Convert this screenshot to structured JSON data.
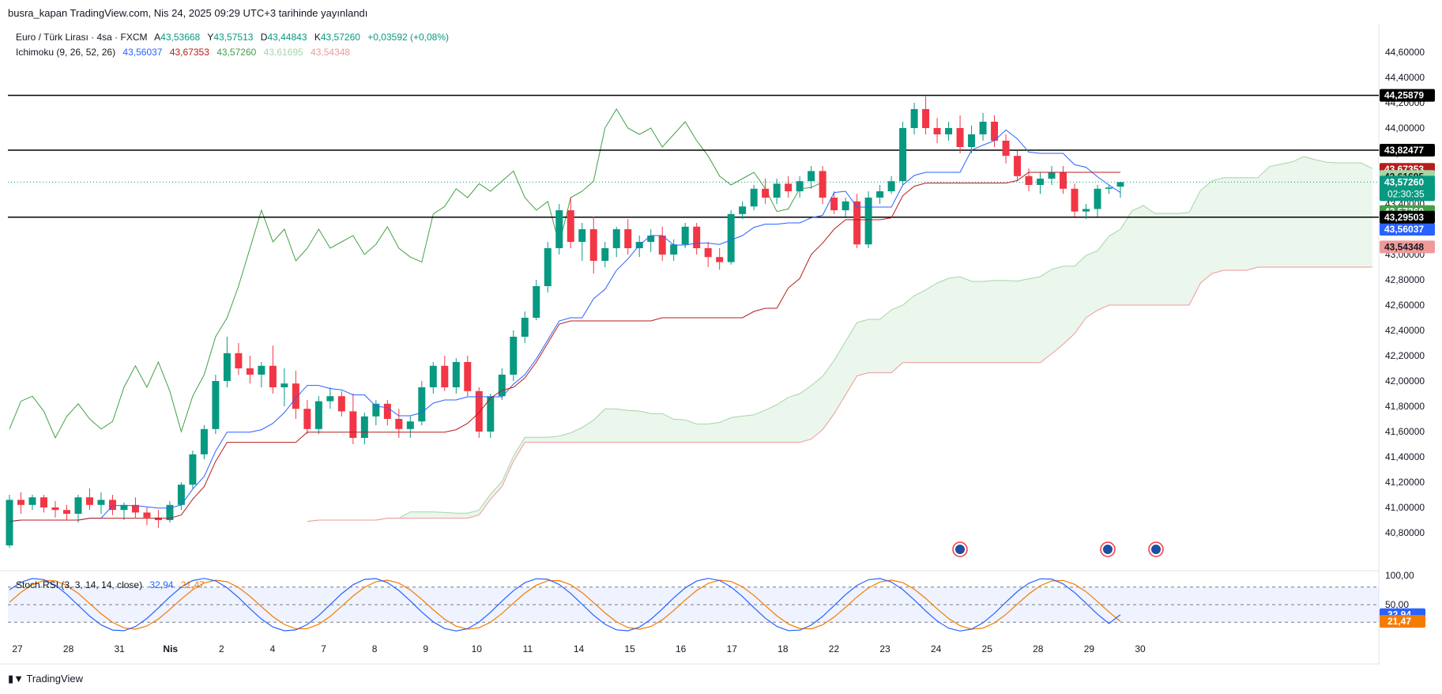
{
  "header": {
    "publish_note": "busra_kapan TradingView.com, Nis 24, 2025 09:29 UTC+3 tarihinde yayınlandı"
  },
  "legend": {
    "symbol": "Euro / Türk Lirası · 4sa · FXCM",
    "open_label": "A",
    "open": "43,53668",
    "high_label": "Y",
    "high": "43,57513",
    "low_label": "D",
    "low": "43,44843",
    "close_label": "K",
    "close": "43,57260",
    "change": "+0,03592 (+0,08%)",
    "ichimoku_label": "Ichimoku (9, 26, 52, 26)",
    "ichimoku_values": [
      "43,56037",
      "43,67353",
      "43,57260",
      "43,61695",
      "43,54348"
    ],
    "stoch_label": "Stoch RSI (3, 3, 14, 14, close)",
    "stoch_values": [
      "32,94",
      "21,47"
    ]
  },
  "colors": {
    "up": "#089981",
    "down": "#F23645",
    "tenkan": "#2962FF",
    "kijun": "#B71C1C",
    "chikou": "#43A047",
    "span_a": "#A5D6A7",
    "span_b": "#EF9A9A",
    "kumo_bull": "#E8F5E9",
    "kumo_bear": "#FDE3E1",
    "stoch_k": "#2962FF",
    "stoch_d": "#F57C00",
    "grid": "#E0E3EB",
    "text": "#131722"
  },
  "price_axis": {
    "ticks": [
      "44,60000",
      "44,40000",
      "44,20000",
      "44,00000",
      "43,80000",
      "43,60000",
      "43,40000",
      "43,20000",
      "43,00000",
      "42,80000",
      "42,60000",
      "42,40000",
      "42,20000",
      "42,00000",
      "41,80000",
      "41,60000",
      "41,40000",
      "41,20000",
      "41,00000",
      "40,80000"
    ]
  },
  "price_tags": [
    {
      "text": "44,25879",
      "value": 44.25879,
      "bg": "#000000",
      "fg": "#ffffff"
    },
    {
      "text": "43,82477",
      "value": 43.82477,
      "bg": "#000000",
      "fg": "#ffffff"
    },
    {
      "text": "43,67353",
      "value": 43.67353,
      "bg": "#B71C1C",
      "fg": "#ffffff"
    },
    {
      "text": "43,61695",
      "value": 43.61695,
      "bg": "#A5D6A7",
      "fg": "#131722"
    },
    {
      "text": "43,57260",
      "value": 43.5726,
      "bg": "#089981",
      "fg": "#ffffff",
      "sub": "02:30:35"
    },
    {
      "text": "43,57260",
      "value": 43.34,
      "bg": "#43A047",
      "fg": "#ffffff"
    },
    {
      "text": "43,56037",
      "value": 43.2,
      "bg": "#2962FF",
      "fg": "#ffffff"
    },
    {
      "text": "43,54348",
      "value": 43.06,
      "bg": "#EF9A9A",
      "fg": "#131722"
    },
    {
      "text": "43,29503",
      "value": 43.29503,
      "bg": "#000000",
      "fg": "#ffffff"
    }
  ],
  "horizontal_levels": [
    44.25879,
    43.82477,
    43.29503
  ],
  "stoch_axis": {
    "ticks": [
      "100,00",
      "50,00"
    ],
    "k_tag": "32,94",
    "d_tag": "21,47"
  },
  "time_axis": {
    "labels": [
      "27",
      "28",
      "31",
      "Nis",
      "2",
      "4",
      "7",
      "8",
      "9",
      "10",
      "11",
      "14",
      "15",
      "16",
      "17",
      "18",
      "22",
      "23",
      "24",
      "25",
      "28",
      "29",
      "30"
    ]
  },
  "footer": {
    "logo": "TradingView"
  },
  "chart_data": {
    "type": "candlestick",
    "title": "Euro / Türk Lirası · 4sa · FXCM",
    "ylim": [
      40.7,
      44.7
    ],
    "x_categories": [
      "27",
      "28",
      "31",
      "Nis",
      "2",
      "4",
      "7",
      "8",
      "9",
      "10",
      "11",
      "14",
      "15",
      "16",
      "17",
      "18",
      "22",
      "23",
      "24",
      "25",
      "28",
      "29",
      "30"
    ],
    "candles_ohlc_approx": [
      [
        40.7,
        41.1,
        40.68,
        41.06
      ],
      [
        41.06,
        41.12,
        40.95,
        41.02
      ],
      [
        41.02,
        41.1,
        40.98,
        41.08
      ],
      [
        41.08,
        41.1,
        40.96,
        41.0
      ],
      [
        41.0,
        41.05,
        40.92,
        40.98
      ],
      [
        40.98,
        41.02,
        40.9,
        40.95
      ],
      [
        40.95,
        41.1,
        40.88,
        41.08
      ],
      [
        41.08,
        41.15,
        40.98,
        41.02
      ],
      [
        41.02,
        41.12,
        40.95,
        41.06
      ],
      [
        41.06,
        41.1,
        40.94,
        40.98
      ],
      [
        40.98,
        41.04,
        40.9,
        41.02
      ],
      [
        41.02,
        41.08,
        40.92,
        40.96
      ],
      [
        40.96,
        41.0,
        40.86,
        40.92
      ],
      [
        40.92,
        40.98,
        40.84,
        40.9
      ],
      [
        40.9,
        41.05,
        40.88,
        41.02
      ],
      [
        41.02,
        41.2,
        40.98,
        41.18
      ],
      [
        41.18,
        41.45,
        41.15,
        41.42
      ],
      [
        41.42,
        41.65,
        41.38,
        41.62
      ],
      [
        41.62,
        42.05,
        41.58,
        42.0
      ],
      [
        42.0,
        42.35,
        41.95,
        42.22
      ],
      [
        42.22,
        42.3,
        42.05,
        42.1
      ],
      [
        42.1,
        42.2,
        41.98,
        42.05
      ],
      [
        42.05,
        42.15,
        41.95,
        42.12
      ],
      [
        42.12,
        42.28,
        41.9,
        41.95
      ],
      [
        41.95,
        42.1,
        41.8,
        41.98
      ],
      [
        41.98,
        42.08,
        41.7,
        41.78
      ],
      [
        41.78,
        41.85,
        41.58,
        41.62
      ],
      [
        41.62,
        41.88,
        41.58,
        41.84
      ],
      [
        41.84,
        41.95,
        41.78,
        41.88
      ],
      [
        41.88,
        41.92,
        41.72,
        41.76
      ],
      [
        41.76,
        41.9,
        41.5,
        41.55
      ],
      [
        41.55,
        41.75,
        41.5,
        41.72
      ],
      [
        41.72,
        41.85,
        41.65,
        41.82
      ],
      [
        41.82,
        41.85,
        41.65,
        41.7
      ],
      [
        41.7,
        41.78,
        41.55,
        41.62
      ],
      [
        41.62,
        41.72,
        41.55,
        41.68
      ],
      [
        41.68,
        42.0,
        41.65,
        41.95
      ],
      [
        41.95,
        42.15,
        41.9,
        42.12
      ],
      [
        42.12,
        42.2,
        41.92,
        41.95
      ],
      [
        41.95,
        42.18,
        41.9,
        42.15
      ],
      [
        42.15,
        42.2,
        41.88,
        41.92
      ],
      [
        41.92,
        41.95,
        41.55,
        41.6
      ],
      [
        41.6,
        41.9,
        41.55,
        41.88
      ],
      [
        41.88,
        42.1,
        41.85,
        42.05
      ],
      [
        42.05,
        42.4,
        42.0,
        42.35
      ],
      [
        42.35,
        42.55,
        42.3,
        42.5
      ],
      [
        42.5,
        42.8,
        42.48,
        42.75
      ],
      [
        42.75,
        43.1,
        42.7,
        43.05
      ],
      [
        43.05,
        43.4,
        43.0,
        43.35
      ],
      [
        43.35,
        43.45,
        43.05,
        43.1
      ],
      [
        43.1,
        43.25,
        42.95,
        43.2
      ],
      [
        43.2,
        43.3,
        42.85,
        42.95
      ],
      [
        42.95,
        43.1,
        42.9,
        43.05
      ],
      [
        43.05,
        43.22,
        42.98,
        43.2
      ],
      [
        43.2,
        43.28,
        43.0,
        43.05
      ],
      [
        43.05,
        43.15,
        42.98,
        43.1
      ],
      [
        43.1,
        43.2,
        43.02,
        43.15
      ],
      [
        43.15,
        43.22,
        42.95,
        43.0
      ],
      [
        43.0,
        43.12,
        42.95,
        43.08
      ],
      [
        43.08,
        43.25,
        43.05,
        43.22
      ],
      [
        43.22,
        43.25,
        43.0,
        43.05
      ],
      [
        43.05,
        43.1,
        42.9,
        42.98
      ],
      [
        42.98,
        43.05,
        42.88,
        42.94
      ],
      [
        42.94,
        43.35,
        42.92,
        43.32
      ],
      [
        43.32,
        43.42,
        43.28,
        43.38
      ],
      [
        43.38,
        43.55,
        43.35,
        43.52
      ],
      [
        43.52,
        43.6,
        43.4,
        43.45
      ],
      [
        43.45,
        43.6,
        43.4,
        43.56
      ],
      [
        43.56,
        43.62,
        43.45,
        43.5
      ],
      [
        43.5,
        43.62,
        43.45,
        43.58
      ],
      [
        43.58,
        43.7,
        43.52,
        43.66
      ],
      [
        43.66,
        43.7,
        43.4,
        43.45
      ],
      [
        43.45,
        43.5,
        43.32,
        43.35
      ],
      [
        43.35,
        43.45,
        43.3,
        43.42
      ],
      [
        43.42,
        43.48,
        43.05,
        43.08
      ],
      [
        43.08,
        43.5,
        43.05,
        43.45
      ],
      [
        43.45,
        43.55,
        43.4,
        43.5
      ],
      [
        43.5,
        43.62,
        43.48,
        43.58
      ],
      [
        43.58,
        44.05,
        43.55,
        44.0
      ],
      [
        44.0,
        44.2,
        43.95,
        44.15
      ],
      [
        44.15,
        44.25,
        43.95,
        44.0
      ],
      [
        44.0,
        44.08,
        43.88,
        43.95
      ],
      [
        43.95,
        44.05,
        43.9,
        44.0
      ],
      [
        44.0,
        44.1,
        43.8,
        43.85
      ],
      [
        43.85,
        44.02,
        43.8,
        43.95
      ],
      [
        43.95,
        44.12,
        43.9,
        44.05
      ],
      [
        44.05,
        44.1,
        43.85,
        43.9
      ],
      [
        43.9,
        43.95,
        43.72,
        43.78
      ],
      [
        43.78,
        43.82,
        43.58,
        43.62
      ],
      [
        43.62,
        43.68,
        43.5,
        43.55
      ],
      [
        43.55,
        43.65,
        43.48,
        43.6
      ],
      [
        43.6,
        43.7,
        43.55,
        43.65
      ],
      [
        43.65,
        43.7,
        43.48,
        43.52
      ],
      [
        43.52,
        43.56,
        43.3,
        43.34
      ],
      [
        43.34,
        43.4,
        43.28,
        43.36
      ],
      [
        43.36,
        43.55,
        43.3,
        43.52
      ],
      [
        43.52,
        43.55,
        43.48,
        43.53
      ],
      [
        43.53668,
        43.57513,
        43.44843,
        43.5726
      ]
    ],
    "stoch_rsi": {
      "k": 32.94,
      "d": 21.47,
      "ylim": [
        0,
        100
      ],
      "bands": [
        20,
        80
      ]
    }
  }
}
